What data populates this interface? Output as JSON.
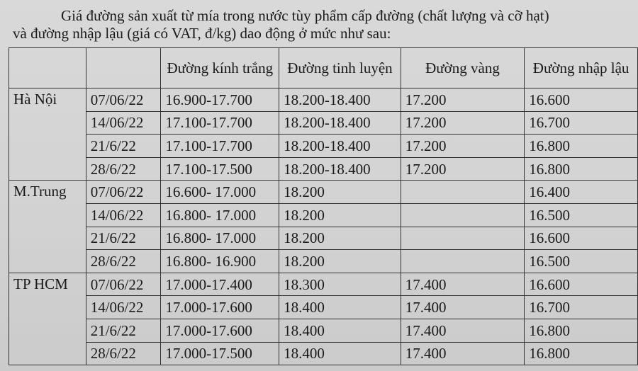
{
  "intro": {
    "line1": "Giá đường sản xuất từ mía trong nước tùy phẩm cấp đường (chất lượng và cỡ hạt)",
    "line2": "và đường nhập lậu (giá có VAT, đ/kg) dao động ở mức như sau:"
  },
  "table": {
    "headers": [
      "",
      "",
      "Đường kính trắng",
      "Đường tinh luyện",
      "Đường vàng",
      "Đường  nhập lậu"
    ],
    "groups": [
      {
        "region": "Hà Nội",
        "rows": [
          [
            "07/06/22",
            "16.900-17.700",
            "18.200-18.400",
            "17.200",
            "16.600"
          ],
          [
            "14/06/22",
            "17.100-17.700",
            "18.200-18.400",
            "17.200",
            "16.700"
          ],
          [
            "21/6/22",
            "17.100-17.700",
            "18.200-18.400",
            "17.200",
            "16.800"
          ],
          [
            "28/6/22",
            "17.100-17.500",
            "18.200-18.400",
            "17.200",
            "16.800"
          ]
        ]
      },
      {
        "region": "M.Trung",
        "rows": [
          [
            "07/06/22",
            "16.600- 17.000",
            "18.200",
            "",
            "16.400"
          ],
          [
            "14/06/22",
            "16.800- 17.000",
            "18.200",
            "",
            "16.500"
          ],
          [
            "21/6/22",
            "16.800- 17.000",
            "18.200",
            "",
            "16.600"
          ],
          [
            "28/6/22",
            "16.800- 16.900",
            "18.200",
            "",
            "16.500"
          ]
        ]
      },
      {
        "region": "TP HCM",
        "rows": [
          [
            "07/06/22",
            "17.000-17.400",
            "18.300",
            "17.400",
            "16.600"
          ],
          [
            "14/06/22",
            "17.000-17.600",
            "18.400",
            "17.400",
            "16.700"
          ],
          [
            "21/6/22",
            "17.000-17.600",
            "18.400",
            "17.400",
            "16.800"
          ],
          [
            "28/6/22",
            "17.000-17.500",
            "18.400",
            "17.400",
            "16.800"
          ]
        ]
      }
    ]
  }
}
